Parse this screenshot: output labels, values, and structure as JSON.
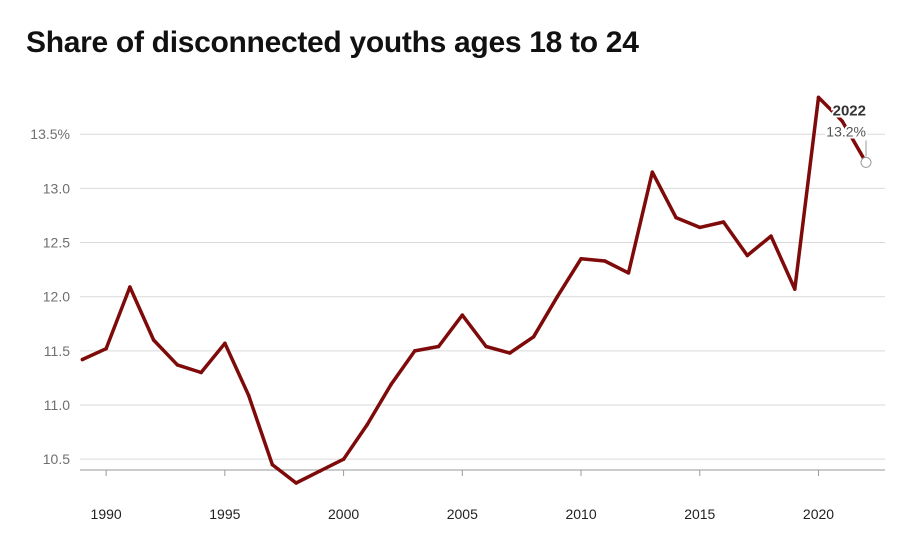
{
  "chart_data": {
    "type": "line",
    "title": "Share of disconnected youths ages 18 to 24",
    "xlabel": "",
    "ylabel": "",
    "x": [
      1989,
      1990,
      1991,
      1992,
      1993,
      1994,
      1995,
      1996,
      1997,
      1998,
      1999,
      2000,
      2001,
      2002,
      2003,
      2004,
      2005,
      2006,
      2007,
      2008,
      2009,
      2010,
      2011,
      2012,
      2013,
      2014,
      2015,
      2016,
      2017,
      2018,
      2019,
      2020,
      2021,
      2022
    ],
    "series": [
      {
        "values": [
          11.42,
          11.52,
          12.09,
          11.6,
          11.37,
          11.3,
          11.57,
          11.09,
          10.45,
          10.28,
          10.39,
          10.5,
          10.82,
          11.19,
          11.5,
          11.54,
          11.83,
          11.54,
          11.48,
          11.63,
          12.0,
          12.35,
          12.33,
          12.22,
          13.15,
          12.73,
          12.64,
          12.69,
          12.38,
          12.56,
          12.07,
          13.84,
          13.62,
          13.24
        ],
        "color": "#7f0a0a"
      }
    ],
    "xlim": [
      1988.9,
      2022.8
    ],
    "ylim": [
      10.4,
      13.89
    ],
    "y_ticks": [
      {
        "value": 10.5,
        "label": "10.5"
      },
      {
        "value": 11.0,
        "label": "11.0"
      },
      {
        "value": 11.5,
        "label": "11.5"
      },
      {
        "value": 12.0,
        "label": "12.0"
      },
      {
        "value": 12.5,
        "label": "12.5"
      },
      {
        "value": 13.0,
        "label": "13.0"
      },
      {
        "value": 13.5,
        "label": "13.5%"
      }
    ],
    "x_ticks": [
      {
        "value": 1990,
        "label": "1990"
      },
      {
        "value": 1995,
        "label": "1995"
      },
      {
        "value": 2000,
        "label": "2000"
      },
      {
        "value": 2005,
        "label": "2005"
      },
      {
        "value": 2010,
        "label": "2010"
      },
      {
        "value": 2015,
        "label": "2015"
      },
      {
        "value": 2020,
        "label": "2020"
      }
    ],
    "grid": true,
    "annotation": {
      "x": 2022,
      "y": 13.24,
      "year_label": "2022",
      "value_label": "13.2%"
    },
    "colors": {
      "line": "#7f0a0a",
      "grid": "#d9d9d9",
      "axis": "#9a9a9a"
    }
  }
}
